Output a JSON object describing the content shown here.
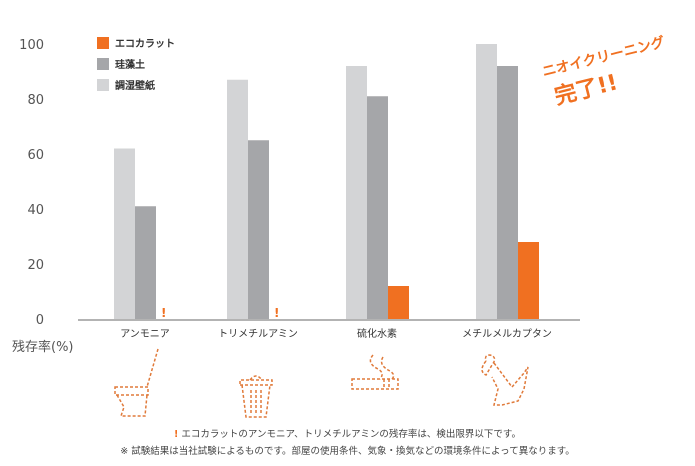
{
  "chart_data": {
    "type": "bar",
    "categories": [
      "アンモニア",
      "トリメチルアミン",
      "硫化水素",
      "メチルメルカプタン"
    ],
    "series": [
      {
        "name": "調湿壁紙",
        "color": "#d3d4d6",
        "values": [
          62,
          87,
          92,
          100
        ]
      },
      {
        "name": "珪藻土",
        "color": "#a5a6a9",
        "values": [
          41,
          65,
          81,
          92
        ]
      },
      {
        "name": "エコカラット",
        "color": "#f07021",
        "values": [
          null,
          null,
          12,
          28
        ]
      }
    ],
    "legend_order": [
      "エコカラット",
      "珪藻土",
      "調湿壁紙"
    ],
    "below_detection_marker": "!",
    "ylabel": "残存率(%)",
    "ylim": [
      0,
      100
    ],
    "yticks": [
      0,
      20,
      40,
      60,
      80,
      100
    ],
    "legend_position": "top-left",
    "grid": false
  },
  "annotation": {
    "line1": "ニオイクリーニング",
    "line2": "完了!!"
  },
  "notes": {
    "marker": "!",
    "note1": "エコカラットのアンモニア、トリメチルアミンの残存率は、検出限界以下です。",
    "note2": "※ 試験結果は当社試験によるものです。部屋の使用条件、気象・換気などの環境条件によって異なります。"
  },
  "icons": [
    "toilet-icon",
    "trash-can-icon",
    "cigarette-icon",
    "dog-icon"
  ]
}
